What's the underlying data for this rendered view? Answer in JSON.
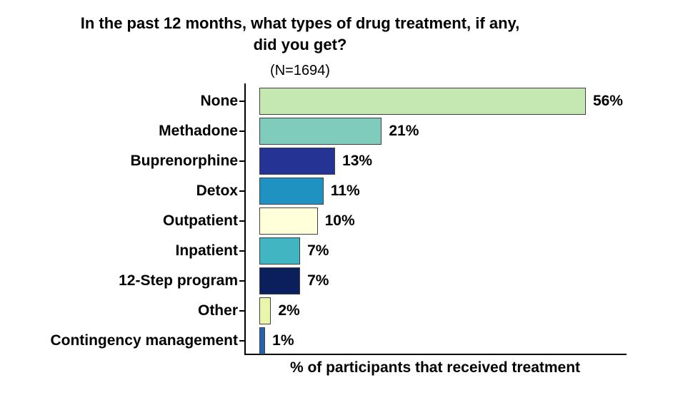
{
  "chart_data": {
    "type": "bar",
    "orientation": "horizontal",
    "title_line1": "In the past 12 months, what types of drug treatment, if any,",
    "title_line2": "did you get?",
    "subtitle": "(N=1694)",
    "xlabel": "% of participants that received treatment",
    "categories": [
      "None",
      "Methadone",
      "Buprenorphine",
      "Detox",
      "Outpatient",
      "Inpatient",
      "12-Step program",
      "Other",
      "Contingency management"
    ],
    "values": [
      56,
      21,
      13,
      11,
      10,
      7,
      7,
      2,
      1
    ],
    "value_labels": [
      "56%",
      "21%",
      "13%",
      "11%",
      "10%",
      "7%",
      "7%",
      "2%",
      "1%"
    ],
    "bar_colors": [
      "#c5e8b2",
      "#7fccbc",
      "#253494",
      "#1f92c1",
      "#ffffd9",
      "#41b5c2",
      "#0b1f5c",
      "#e9f7ac",
      "#2663ae"
    ],
    "bar_border_color": "#404040",
    "axis_color": "#000000",
    "text_color": "#000000",
    "background_color": "#ffffff",
    "xlim": [
      0,
      60
    ],
    "grid": "off",
    "legend": "none"
  }
}
